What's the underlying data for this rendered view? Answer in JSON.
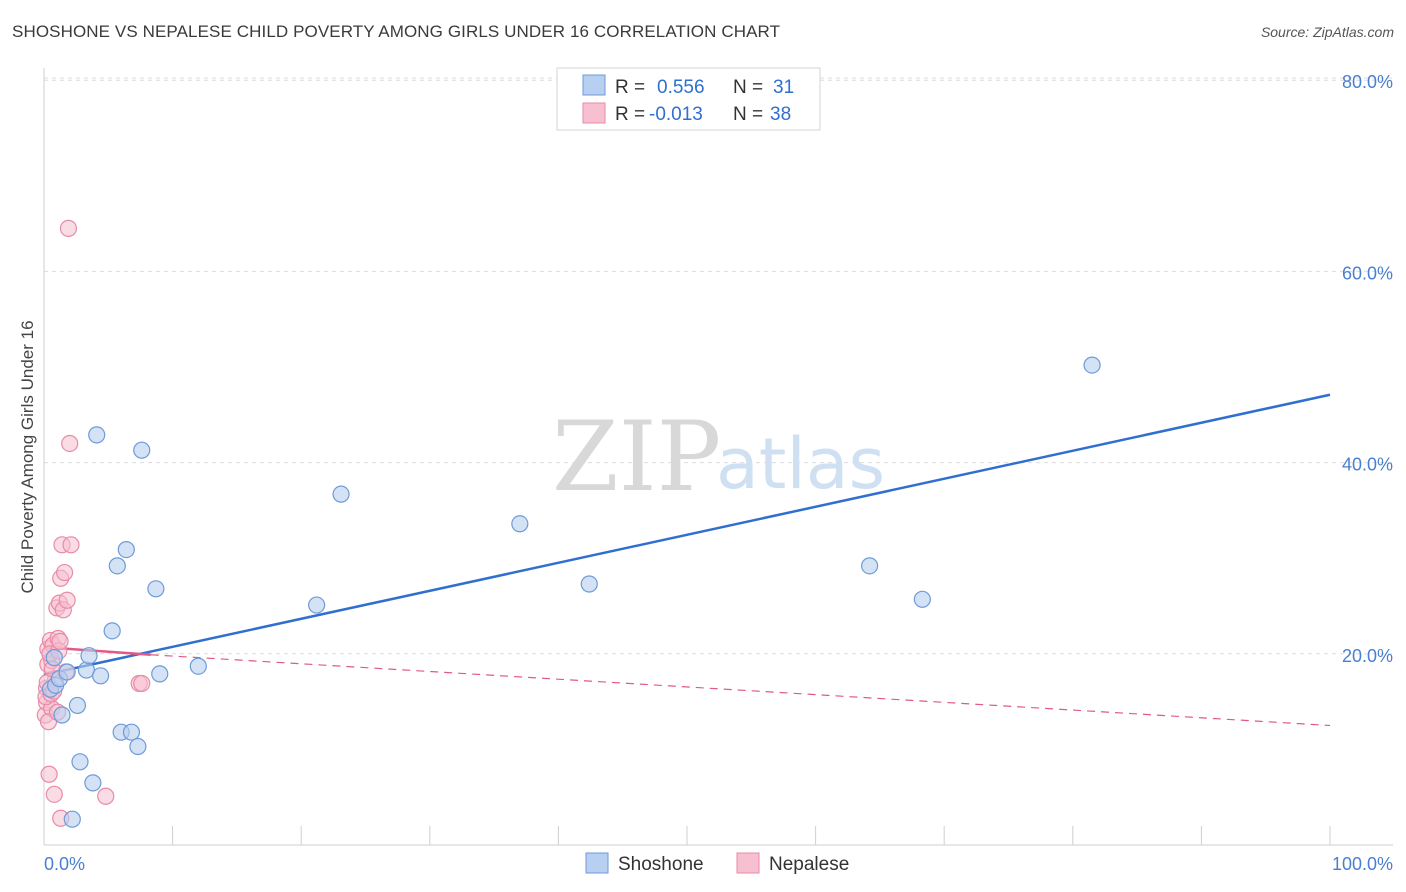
{
  "header": {
    "title": "SHOSHONE VS NEPALESE CHILD POVERTY AMONG GIRLS UNDER 16 CORRELATION CHART",
    "source": "Source: ZipAtlas.com"
  },
  "watermark": {
    "zip": "ZIP",
    "atlas": "atlas"
  },
  "colors": {
    "shoshone_fill": "#b7cff0",
    "shoshone_stroke": "#6f9ad8",
    "shoshone_line": "#2f6fd0",
    "nepalese_fill": "#f6c0d0",
    "nepalese_stroke": "#e98aa8",
    "nepalese_line": "#e05a85",
    "grid": "#dcdcdc",
    "tick_label": "#4a7fd0"
  },
  "legend": {
    "rows": [
      {
        "r_label": "R =",
        "r_value": "0.556",
        "n_label": "N =",
        "n_value": "31"
      },
      {
        "r_label": "R =",
        "r_value": "-0.013",
        "n_label": "N =",
        "n_value": "38"
      }
    ]
  },
  "bottom_legend": {
    "items": [
      "Shoshone",
      "Nepalese"
    ]
  },
  "chart_data": {
    "type": "scatter",
    "title": "SHOSHONE VS NEPALESE CHILD POVERTY AMONG GIRLS UNDER 16 CORRELATION CHART",
    "xlabel": "",
    "ylabel": "Child Poverty Among Girls Under 16",
    "xlim": [
      0,
      100
    ],
    "ylim": [
      0,
      83
    ],
    "x_tick_labels": [
      "0.0%",
      "100.0%"
    ],
    "y_ticks": [
      20,
      40,
      60,
      80
    ],
    "y_tick_labels": [
      "20.0%",
      "40.0%",
      "60.0%",
      "80.0%"
    ],
    "grid": true,
    "legend_position": "top-center",
    "series": [
      {
        "name": "Shoshone",
        "r": 0.556,
        "n": 31,
        "points": [
          [
            0.5,
            16.3
          ],
          [
            0.8,
            19.6
          ],
          [
            0.9,
            16.7
          ],
          [
            1.2,
            17.4
          ],
          [
            1.4,
            13.6
          ],
          [
            1.8,
            18.1
          ],
          [
            2.2,
            2.7
          ],
          [
            2.6,
            14.6
          ],
          [
            2.8,
            8.7
          ],
          [
            3.3,
            18.3
          ],
          [
            3.5,
            19.8
          ],
          [
            3.8,
            6.5
          ],
          [
            4.1,
            42.9
          ],
          [
            4.4,
            17.7
          ],
          [
            5.3,
            22.4
          ],
          [
            5.7,
            29.2
          ],
          [
            6.0,
            11.8
          ],
          [
            6.4,
            30.9
          ],
          [
            6.8,
            11.8
          ],
          [
            7.3,
            10.3
          ],
          [
            7.6,
            41.3
          ],
          [
            8.7,
            26.8
          ],
          [
            9.0,
            17.9
          ],
          [
            12.0,
            18.7
          ],
          [
            21.2,
            25.1
          ],
          [
            23.1,
            36.7
          ],
          [
            37.0,
            33.6
          ],
          [
            42.4,
            27.3
          ],
          [
            64.2,
            29.2
          ],
          [
            68.3,
            25.7
          ],
          [
            81.5,
            50.2
          ]
        ],
        "trend": {
          "x": [
            0,
            100
          ],
          "y": [
            17.8,
            47.1
          ]
        }
      },
      {
        "name": "Nepalese",
        "r": -0.013,
        "n": 38,
        "points": [
          [
            0.1,
            13.6
          ],
          [
            0.2,
            14.9
          ],
          [
            0.2,
            16.4
          ],
          [
            0.3,
            20.5
          ],
          [
            0.3,
            18.9
          ],
          [
            0.4,
            7.4
          ],
          [
            0.5,
            21.4
          ],
          [
            0.6,
            19.3
          ],
          [
            0.6,
            14.3
          ],
          [
            0.7,
            20.9
          ],
          [
            0.8,
            5.3
          ],
          [
            0.9,
            17.4
          ],
          [
            1.0,
            24.8
          ],
          [
            1.1,
            21.6
          ],
          [
            1.2,
            25.3
          ],
          [
            1.3,
            27.9
          ],
          [
            1.3,
            2.8
          ],
          [
            1.4,
            31.4
          ],
          [
            1.5,
            24.6
          ],
          [
            1.6,
            28.5
          ],
          [
            1.7,
            18.1
          ],
          [
            1.8,
            25.6
          ],
          [
            1.9,
            64.5
          ],
          [
            2.0,
            42.0
          ],
          [
            2.1,
            31.4
          ],
          [
            4.8,
            5.1
          ],
          [
            7.4,
            16.9
          ],
          [
            7.6,
            16.9
          ],
          [
            0.15,
            15.5
          ],
          [
            0.25,
            17.0
          ],
          [
            0.35,
            12.9
          ],
          [
            0.45,
            20.0
          ],
          [
            0.55,
            15.8
          ],
          [
            0.65,
            18.4
          ],
          [
            0.75,
            16.1
          ],
          [
            1.05,
            13.9
          ],
          [
            1.15,
            20.3
          ],
          [
            1.25,
            21.3
          ]
        ],
        "trend_solid": {
          "x": [
            0,
            8.3
          ],
          "y": [
            20.7,
            19.9
          ]
        },
        "trend_dashed": {
          "x": [
            8.3,
            100
          ],
          "y": [
            19.9,
            12.5
          ]
        }
      }
    ]
  }
}
